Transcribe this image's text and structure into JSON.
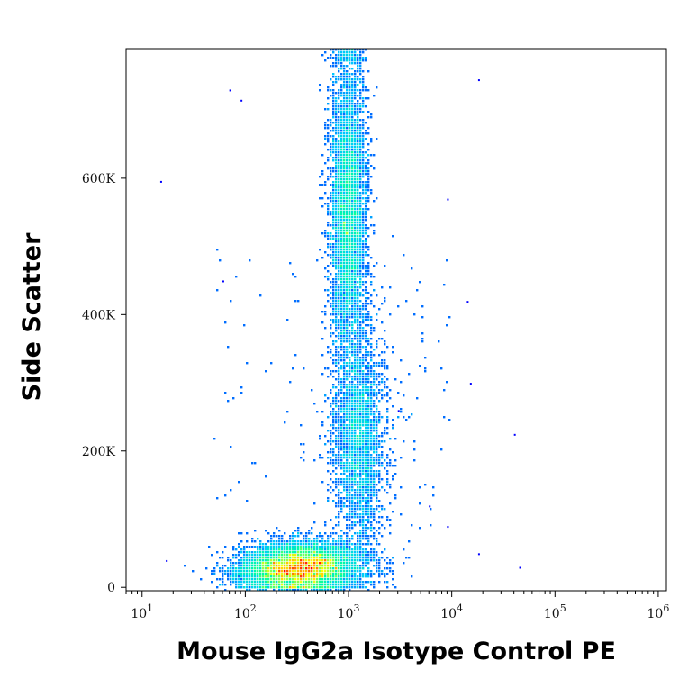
{
  "chart_data": {
    "type": "scatter",
    "subtype": "flow-cytometry-density-dot-plot",
    "xlabel": "Mouse IgG2a Isotype Control PE",
    "ylabel": "Side Scatter",
    "x_scale": "log",
    "x_range": [
      7,
      1200000
    ],
    "y_range": [
      -5000,
      790000
    ],
    "x_ticks": [
      {
        "value": 10,
        "base": "10",
        "exp": "1"
      },
      {
        "value": 100,
        "base": "10",
        "exp": "2"
      },
      {
        "value": 1000,
        "base": "10",
        "exp": "3"
      },
      {
        "value": 10000,
        "base": "10",
        "exp": "4"
      },
      {
        "value": 100000,
        "base": "10",
        "exp": "5"
      },
      {
        "value": 1000000,
        "base": "10",
        "exp": "6"
      }
    ],
    "y_ticks": [
      {
        "value": 0,
        "label": "0"
      },
      {
        "value": 200000,
        "label": "200K"
      },
      {
        "value": 400000,
        "label": "400K"
      },
      {
        "value": 600000,
        "label": "600K"
      }
    ],
    "colormap": [
      "#0000ff",
      "#00c8ff",
      "#00ffa0",
      "#ffff00",
      "#ff0000"
    ],
    "populations": [
      {
        "x_log10_center": 2.5,
        "x_log10_sd": 0.28,
        "y_center": 28000,
        "y_sd": 18000,
        "relative_density": 1.0
      },
      {
        "x_log10_center": 3.0,
        "x_log10_sd": 0.09,
        "y_center": 560000,
        "y_sd": 110000,
        "relative_density": 0.55
      },
      {
        "x_log10_center": 3.1,
        "x_log10_sd": 0.13,
        "y_center": 220000,
        "y_sd": 80000,
        "relative_density": 0.3
      }
    ],
    "outlier_points": [
      [
        15,
        596000
      ],
      [
        17,
        40000
      ],
      [
        70,
        730000
      ],
      [
        90,
        715000
      ],
      [
        60,
        450000
      ],
      [
        18000,
        745000
      ],
      [
        9000,
        570000
      ],
      [
        14000,
        420000
      ],
      [
        15000,
        300000
      ],
      [
        40000,
        225000
      ],
      [
        45000,
        30000
      ],
      [
        18000,
        50000
      ],
      [
        9000,
        90000
      ],
      [
        1200000,
        20000
      ],
      [
        3000,
        260000
      ],
      [
        6000,
        120000
      ]
    ],
    "grid": false,
    "legend": "none"
  }
}
